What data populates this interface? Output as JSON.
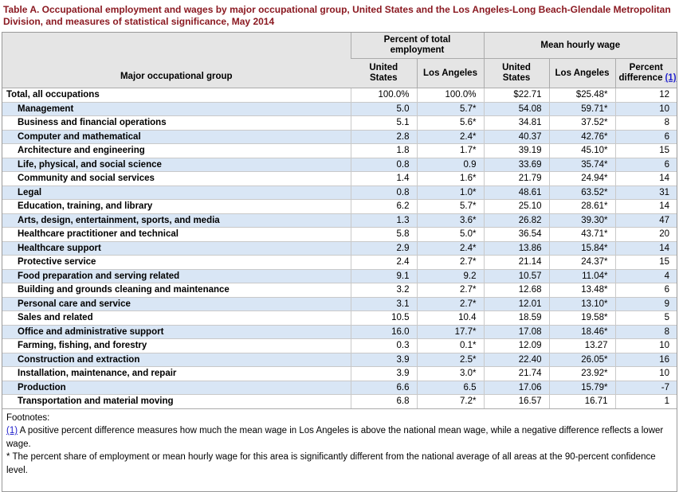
{
  "page": {
    "title": "Table A. Occupational employment and wages by major occupational group, United States and the Los Angeles-Long Beach-Glendale Metropolitan Division, and measures of statistical significance, May 2014"
  },
  "colors": {
    "title_maroon": "#8B1A22",
    "header_bg": "#E5E5E5",
    "row_alt_blue": "#D9E6F5",
    "link_blue": "#2222CC",
    "border_grey": "#999999"
  },
  "table": {
    "header": {
      "occupation": "Major occupational group",
      "group_percent_employment": "Percent of total\nemployment",
      "group_mean_wage": "Mean hourly wage",
      "col_us_employment": "United\nStates",
      "col_la_employment": "Los Angeles",
      "col_us_wage": "United\nStates",
      "col_la_wage": "Los Angeles",
      "col_percent_difference": "Percent\ndifference",
      "footnote_ref": "(1)"
    },
    "rows": [
      {
        "occupation": "Total, all occupations",
        "indent": false,
        "us_employment": "100.0%",
        "la_employment": "100.0%",
        "us_wage": "$22.71",
        "la_wage": "$25.48*",
        "percent_difference": "12"
      },
      {
        "occupation": "Management",
        "indent": true,
        "us_employment": "5.0",
        "la_employment": "5.7*",
        "us_wage": "54.08",
        "la_wage": "59.71*",
        "percent_difference": "10"
      },
      {
        "occupation": "Business and financial operations",
        "indent": true,
        "us_employment": "5.1",
        "la_employment": "5.6*",
        "us_wage": "34.81",
        "la_wage": "37.52*",
        "percent_difference": "8"
      },
      {
        "occupation": "Computer and mathematical",
        "indent": true,
        "us_employment": "2.8",
        "la_employment": "2.4*",
        "us_wage": "40.37",
        "la_wage": "42.76*",
        "percent_difference": "6"
      },
      {
        "occupation": "Architecture and engineering",
        "indent": true,
        "us_employment": "1.8",
        "la_employment": "1.7*",
        "us_wage": "39.19",
        "la_wage": "45.10*",
        "percent_difference": "15"
      },
      {
        "occupation": "Life, physical, and social science",
        "indent": true,
        "us_employment": "0.8",
        "la_employment": "0.9",
        "us_wage": "33.69",
        "la_wage": "35.74*",
        "percent_difference": "6"
      },
      {
        "occupation": "Community and social services",
        "indent": true,
        "us_employment": "1.4",
        "la_employment": "1.6*",
        "us_wage": "21.79",
        "la_wage": "24.94*",
        "percent_difference": "14"
      },
      {
        "occupation": "Legal",
        "indent": true,
        "us_employment": "0.8",
        "la_employment": "1.0*",
        "us_wage": "48.61",
        "la_wage": "63.52*",
        "percent_difference": "31"
      },
      {
        "occupation": "Education, training, and library",
        "indent": true,
        "us_employment": "6.2",
        "la_employment": "5.7*",
        "us_wage": "25.10",
        "la_wage": "28.61*",
        "percent_difference": "14"
      },
      {
        "occupation": "Arts, design, entertainment, sports, and media",
        "indent": true,
        "us_employment": "1.3",
        "la_employment": "3.6*",
        "us_wage": "26.82",
        "la_wage": "39.30*",
        "percent_difference": "47"
      },
      {
        "occupation": "Healthcare practitioner and technical",
        "indent": true,
        "us_employment": "5.8",
        "la_employment": "5.0*",
        "us_wage": "36.54",
        "la_wage": "43.71*",
        "percent_difference": "20"
      },
      {
        "occupation": "Healthcare support",
        "indent": true,
        "us_employment": "2.9",
        "la_employment": "2.4*",
        "us_wage": "13.86",
        "la_wage": "15.84*",
        "percent_difference": "14"
      },
      {
        "occupation": "Protective service",
        "indent": true,
        "us_employment": "2.4",
        "la_employment": "2.7*",
        "us_wage": "21.14",
        "la_wage": "24.37*",
        "percent_difference": "15"
      },
      {
        "occupation": "Food preparation and serving related",
        "indent": true,
        "us_employment": "9.1",
        "la_employment": "9.2",
        "us_wage": "10.57",
        "la_wage": "11.04*",
        "percent_difference": "4"
      },
      {
        "occupation": "Building and grounds cleaning and maintenance",
        "indent": true,
        "us_employment": "3.2",
        "la_employment": "2.7*",
        "us_wage": "12.68",
        "la_wage": "13.48*",
        "percent_difference": "6"
      },
      {
        "occupation": "Personal care and service",
        "indent": true,
        "us_employment": "3.1",
        "la_employment": "2.7*",
        "us_wage": "12.01",
        "la_wage": "13.10*",
        "percent_difference": "9"
      },
      {
        "occupation": "Sales and related",
        "indent": true,
        "us_employment": "10.5",
        "la_employment": "10.4",
        "us_wage": "18.59",
        "la_wage": "19.58*",
        "percent_difference": "5"
      },
      {
        "occupation": "Office and administrative support",
        "indent": true,
        "us_employment": "16.0",
        "la_employment": "17.7*",
        "us_wage": "17.08",
        "la_wage": "18.46*",
        "percent_difference": "8"
      },
      {
        "occupation": "Farming, fishing, and forestry",
        "indent": true,
        "us_employment": "0.3",
        "la_employment": "0.1*",
        "us_wage": "12.09",
        "la_wage": "13.27",
        "percent_difference": "10"
      },
      {
        "occupation": "Construction and extraction",
        "indent": true,
        "us_employment": "3.9",
        "la_employment": "2.5*",
        "us_wage": "22.40",
        "la_wage": "26.05*",
        "percent_difference": "16"
      },
      {
        "occupation": "Installation, maintenance, and repair",
        "indent": true,
        "us_employment": "3.9",
        "la_employment": "3.0*",
        "us_wage": "21.74",
        "la_wage": "23.92*",
        "percent_difference": "10"
      },
      {
        "occupation": "Production",
        "indent": true,
        "us_employment": "6.6",
        "la_employment": "6.5",
        "us_wage": "17.06",
        "la_wage": "15.79*",
        "percent_difference": "-7"
      },
      {
        "occupation": "Transportation and material moving",
        "indent": true,
        "us_employment": "6.8",
        "la_employment": "7.2*",
        "us_wage": "16.57",
        "la_wage": "16.71",
        "percent_difference": "1"
      }
    ]
  },
  "footnotes": {
    "heading": "Footnotes:",
    "ref1_label": "(1)",
    "ref1_text": " A positive percent difference measures how much the mean wage in Los Angeles is above the national mean wage, while a negative difference reflects a lower wage.",
    "star_text": "* The percent share of employment or mean hourly wage for this area is significantly different from the national average of all areas at the 90-percent confidence level."
  }
}
